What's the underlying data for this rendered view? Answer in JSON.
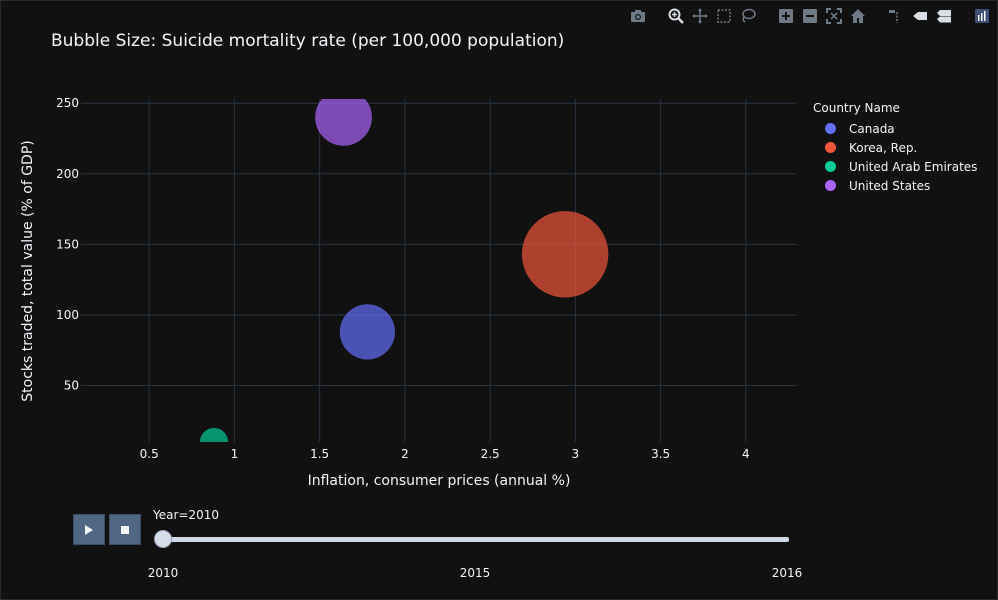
{
  "modebar": {
    "icons": [
      "camera-icon",
      "zoom-icon",
      "pan-icon",
      "box-select-icon",
      "lasso-icon",
      "zoom-in-icon",
      "zoom-out-icon",
      "autoscale-icon",
      "reset-icon",
      "spike-icon",
      "hover-closest-icon",
      "hover-compare-icon",
      "plotly-logo-icon"
    ]
  },
  "chart_data": {
    "type": "scatter",
    "title": "Bubble Size: Suicide mortality rate (per 100,000 population)",
    "xlabel": "Inflation, consumer prices (annual %)",
    "ylabel": "Stocks traded, total value (% of GDP)",
    "xlim": [
      0.1,
      4.3
    ],
    "ylim": [
      10,
      253
    ],
    "xticks": [
      "0.5",
      "1",
      "1.5",
      "2",
      "2.5",
      "3",
      "3.5",
      "4"
    ],
    "xtick_values": [
      0.5,
      1,
      1.5,
      2,
      2.5,
      3,
      3.5,
      4
    ],
    "yticks": [
      "50",
      "100",
      "150",
      "200",
      "250"
    ],
    "ytick_values": [
      50,
      100,
      150,
      200,
      250
    ],
    "grid": true,
    "legend_title": "Country Name",
    "legend_position": "right",
    "series": [
      {
        "name": "Canada",
        "color": "#636efa",
        "x": 1.78,
        "y": 88,
        "size": 11.7
      },
      {
        "name": "Korea, Rep.",
        "color": "#ef553b",
        "x": 2.94,
        "y": 143,
        "size": 28.8
      },
      {
        "name": "United Arab Emirates",
        "color": "#00cc96",
        "x": 0.88,
        "y": 10,
        "size": 3.0
      },
      {
        "name": "United States",
        "color": "#ab63fa",
        "x": 1.64,
        "y": 240,
        "size": 12.4
      }
    ]
  },
  "slider": {
    "current_label": "Year=2010",
    "ticks": [
      "2010",
      "2015",
      "2016"
    ],
    "tick_values": [
      2010,
      2015,
      2016
    ],
    "range": [
      2010,
      2016
    ],
    "value": 2010
  }
}
